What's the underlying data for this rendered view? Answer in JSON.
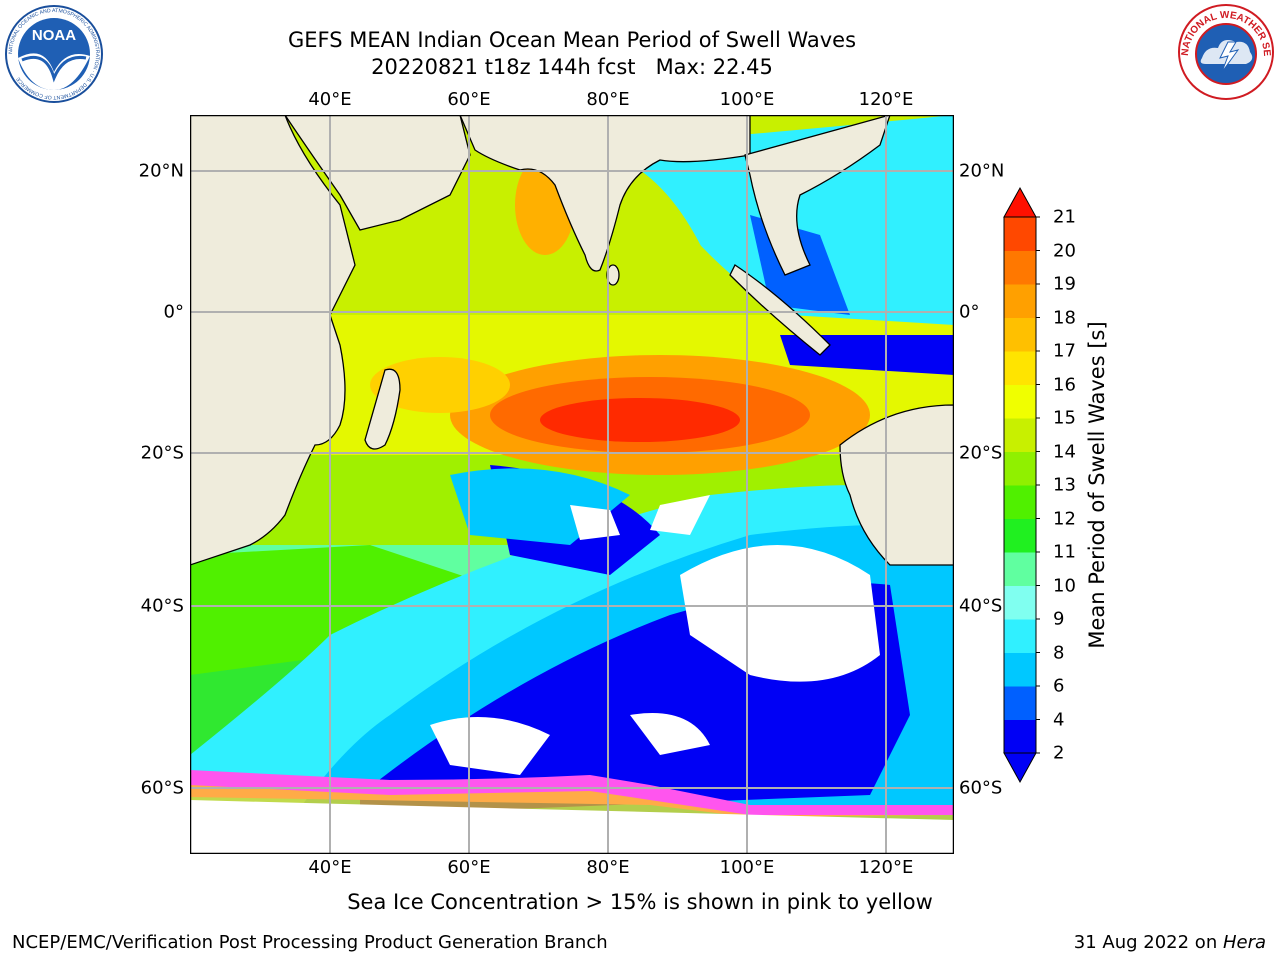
{
  "header": {
    "title_line1": "GEFS MEAN Indian Ocean Mean Period of Swell Waves",
    "title_line2": "20220821 t18z 144h fcst   Max: 22.45"
  },
  "logos": {
    "left_name": "NOAA",
    "left_ring_text": "NATIONAL OCEANIC AND ATMOSPHERIC ADMINISTRATION · U.S. DEPARTMENT OF COMMERCE",
    "right_ring_text": "NATIONAL WEATHER SERVICE"
  },
  "map": {
    "lon_labels": [
      "40°E",
      "60°E",
      "80°E",
      "100°E",
      "120°E"
    ],
    "lat_labels": [
      "20°N",
      "0°",
      "20°S",
      "40°S",
      "60°S"
    ],
    "land_color": "#efecdc",
    "grid_color": "#b0b0b0"
  },
  "colorbar": {
    "label": "Mean Period of Swell Waves [s]",
    "ticks": [
      "2",
      "4",
      "6",
      "8",
      "9",
      "10",
      "11",
      "12",
      "13",
      "14",
      "15",
      "16",
      "17",
      "18",
      "19",
      "20",
      "21"
    ],
    "colors": [
      "#0000f5",
      "#0060ff",
      "#00c8ff",
      "#30f0ff",
      "#80fff0",
      "#60ffa0",
      "#20f020",
      "#50f000",
      "#90f000",
      "#c8f000",
      "#f0ff00",
      "#ffe400",
      "#ffc000",
      "#ffa000",
      "#ff7800",
      "#ff4800",
      "#ff1000"
    ]
  },
  "footer": {
    "note": "Sea Ice Concentration > 15% is shown in pink to yellow",
    "credit": "NCEP/EMC/Verification Post Processing Product Generation Branch",
    "date": "31 Aug 2022 on ",
    "host": "Hera"
  }
}
